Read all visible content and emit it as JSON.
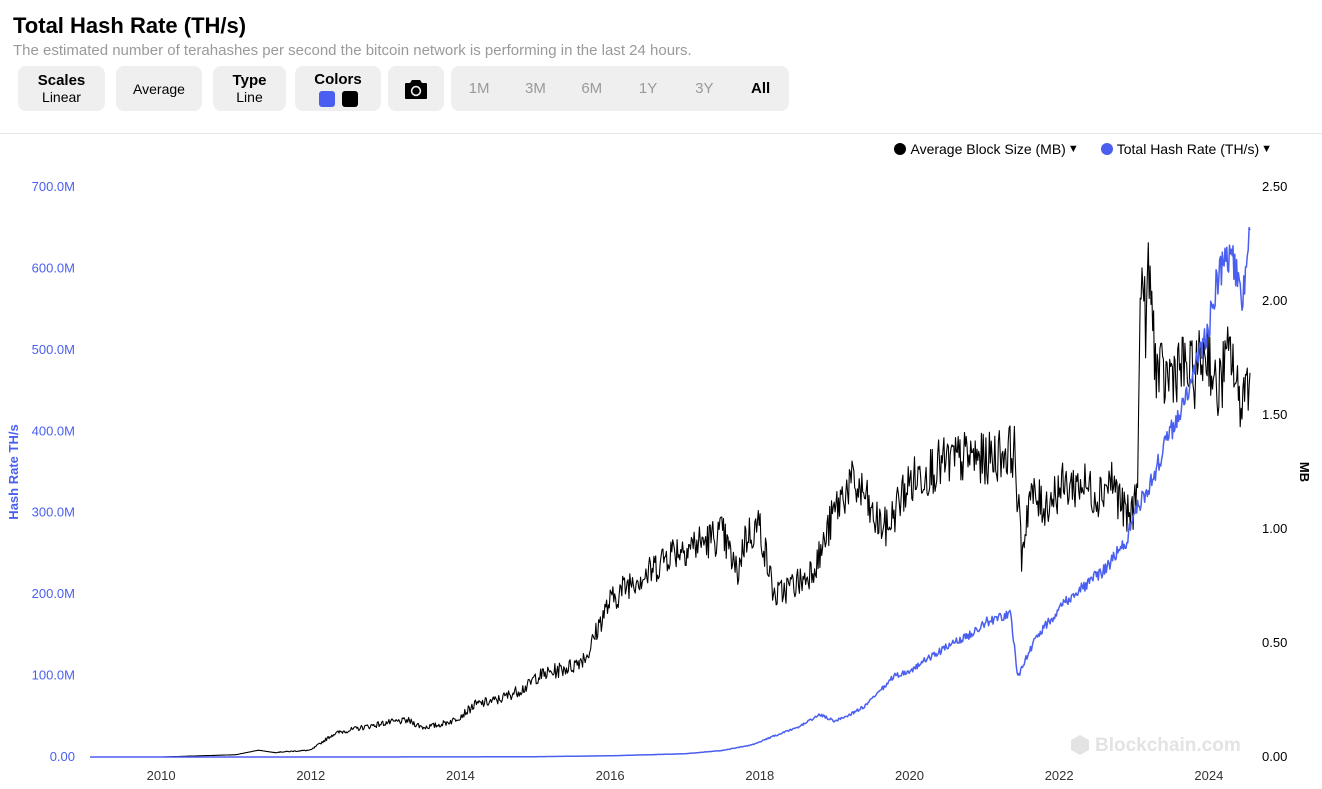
{
  "header": {
    "title": "Total Hash Rate (TH/s)",
    "subtitle": "The estimated number of terahashes per second the bitcoin network is performing in the last 24 hours."
  },
  "toolbar": {
    "scales": {
      "label": "Scales",
      "value": "Linear"
    },
    "average": {
      "label": "Average"
    },
    "type": {
      "label": "Type",
      "value": "Line"
    },
    "colors": {
      "label": "Colors",
      "swatches": [
        "#4a5ff0",
        "#000000"
      ]
    },
    "camera_icon": "camera-icon",
    "ranges": [
      "1M",
      "3M",
      "6M",
      "1Y",
      "3Y",
      "All"
    ],
    "active_range": "All"
  },
  "watermark": "Blockchain.com",
  "chart_data": {
    "type": "line",
    "legend_position": "top-right",
    "grid": false,
    "x_ticks": [
      "2010",
      "2012",
      "2014",
      "2016",
      "2018",
      "2020",
      "2022",
      "2024"
    ],
    "xlim": [
      2009.05,
      2024.55
    ],
    "left_axis": {
      "label": "Hash Rate TH/s",
      "ticks": [
        "700.0M",
        "600.0M",
        "500.0M",
        "400.0M",
        "300.0M",
        "200.0M",
        "100.0M",
        "0.00"
      ],
      "range": [
        0,
        700000000
      ],
      "color": "#4a5ff0"
    },
    "right_axis": {
      "label": "MB",
      "ticks": [
        "2.50",
        "2.00",
        "1.50",
        "1.00",
        "0.50",
        "0.00"
      ],
      "range": [
        0,
        2.5
      ],
      "color": "#000000"
    },
    "series": [
      {
        "name": "Average Block Size (MB)",
        "axis": "right",
        "color": "#000000",
        "x": [
          2009.05,
          2010.0,
          2011.0,
          2011.3,
          2011.5,
          2012.0,
          2012.3,
          2012.4,
          2012.7,
          2013.0,
          2013.3,
          2013.5,
          2013.7,
          2013.9,
          2014.0,
          2014.2,
          2014.5,
          2014.7,
          2014.9,
          2015.0,
          2015.3,
          2015.5,
          2015.7,
          2015.9,
          2016.0,
          2016.3,
          2016.5,
          2016.8,
          2017.0,
          2017.3,
          2017.5,
          2017.7,
          2017.8,
          2017.9,
          2018.0,
          2018.1,
          2018.2,
          2018.4,
          2018.6,
          2018.8,
          2019.0,
          2019.2,
          2019.4,
          2019.5,
          2019.7,
          2019.9,
          2020.0,
          2020.2,
          2020.4,
          2020.6,
          2020.8,
          2021.0,
          2021.2,
          2021.4,
          2021.5,
          2021.6,
          2021.8,
          2022.0,
          2022.3,
          2022.5,
          2022.7,
          2022.9,
          2023.0,
          2023.05,
          2023.1,
          2023.15,
          2023.2,
          2023.3,
          2023.4,
          2023.6,
          2023.8,
          2023.9,
          2024.0,
          2024.1,
          2024.2,
          2024.3,
          2024.4,
          2024.55
        ],
        "y": [
          0.0,
          0.0,
          0.01,
          0.03,
          0.02,
          0.03,
          0.1,
          0.11,
          0.13,
          0.15,
          0.16,
          0.13,
          0.14,
          0.16,
          0.18,
          0.23,
          0.25,
          0.28,
          0.31,
          0.35,
          0.38,
          0.4,
          0.45,
          0.62,
          0.68,
          0.78,
          0.8,
          0.9,
          0.92,
          0.95,
          0.98,
          0.8,
          0.96,
          0.99,
          1.02,
          0.85,
          0.7,
          0.75,
          0.78,
          0.88,
          1.08,
          1.2,
          1.15,
          1.05,
          1.0,
          1.15,
          1.2,
          1.25,
          1.28,
          1.3,
          1.32,
          1.3,
          1.33,
          1.35,
          0.88,
          1.15,
          1.1,
          1.18,
          1.2,
          1.15,
          1.22,
          1.05,
          1.08,
          1.3,
          2.2,
          1.9,
          2.12,
          1.7,
          1.65,
          1.72,
          1.67,
          1.75,
          1.78,
          1.58,
          1.7,
          1.78,
          1.55,
          1.68
        ]
      },
      {
        "name": "Total Hash Rate (TH/s)",
        "axis": "left",
        "color": "#4a5ff0",
        "x": [
          2009.05,
          2012.0,
          2014.0,
          2015.0,
          2016.0,
          2017.0,
          2017.5,
          2017.9,
          2018.2,
          2018.5,
          2018.8,
          2019.0,
          2019.2,
          2019.4,
          2019.6,
          2019.8,
          2020.0,
          2020.2,
          2020.5,
          2020.8,
          2021.0,
          2021.2,
          2021.35,
          2021.45,
          2021.55,
          2021.7,
          2021.9,
          2022.0,
          2022.2,
          2022.4,
          2022.6,
          2022.9,
          2023.0,
          2023.2,
          2023.4,
          2023.6,
          2023.8,
          2024.0,
          2024.1,
          2024.2,
          2024.3,
          2024.45,
          2024.55
        ],
        "y": [
          0,
          0,
          100000,
          400000,
          1500000,
          4000000,
          8000000,
          15000000,
          26000000,
          36000000,
          52000000,
          44000000,
          52000000,
          62000000,
          80000000,
          100000000,
          105000000,
          118000000,
          135000000,
          150000000,
          165000000,
          172000000,
          175000000,
          98000000,
          120000000,
          148000000,
          170000000,
          185000000,
          200000000,
          215000000,
          230000000,
          265000000,
          300000000,
          330000000,
          380000000,
          420000000,
          470000000,
          530000000,
          580000000,
          610000000,
          620000000,
          560000000,
          640000000
        ]
      }
    ]
  }
}
